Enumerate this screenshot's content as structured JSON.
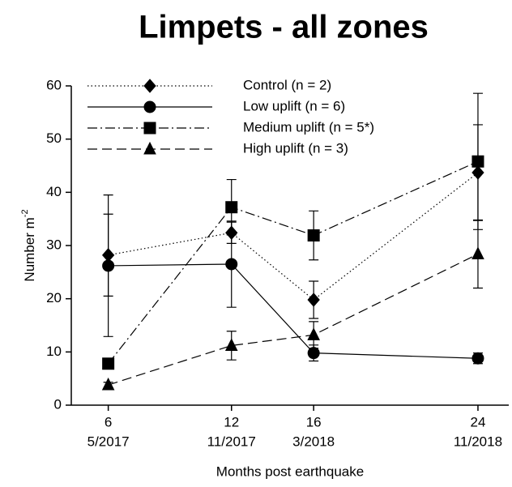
{
  "chart_data": {
    "type": "line",
    "title": "Limpets - all zones",
    "xlabel": "Months post earthquake",
    "ylabel": "Number m",
    "ylabel_superscript": "-2",
    "x": [
      6,
      12,
      16,
      24
    ],
    "xlim": [
      4.2,
      25.5
    ],
    "xticks": [
      {
        "value": 6,
        "label": "6",
        "sublabel": "5/2017"
      },
      {
        "value": 12,
        "label": "12",
        "sublabel": "11/2017"
      },
      {
        "value": 16,
        "label": "16",
        "sublabel": "3/2018"
      },
      {
        "value": 24,
        "label": "24",
        "sublabel": "11/2018"
      }
    ],
    "ylim": [
      0,
      60
    ],
    "yticks": [
      0,
      10,
      20,
      30,
      40,
      50,
      60
    ],
    "legend": "upper left",
    "series": [
      {
        "name": "Control (n = 2)",
        "color": "#000000",
        "dash": "dotted",
        "marker": "diamond",
        "values": [
          28.2,
          32.4,
          19.8,
          43.7
        ],
        "errors": [
          7.7,
          2.0,
          3.5,
          9.0
        ]
      },
      {
        "name": "Low uplift (n = 6)",
        "color": "#000000",
        "dash": "solid",
        "marker": "circle",
        "values": [
          26.2,
          26.5,
          9.8,
          8.8
        ],
        "errors": [
          13.3,
          8.1,
          1.5,
          1.0
        ]
      },
      {
        "name": "Medium uplift (n = 5*)",
        "color": "#000000",
        "dash": "dashdot",
        "marker": "square",
        "values": [
          7.8,
          37.2,
          31.9,
          45.8
        ],
        "errors": [
          0.5,
          5.2,
          4.6,
          12.8
        ]
      },
      {
        "name": "High uplift (n = 3)",
        "color": "#000000",
        "dash": "dashed",
        "marker": "triangle",
        "values": [
          3.8,
          11.2,
          13.2,
          28.4
        ],
        "errors": [
          0.5,
          2.7,
          2.5,
          6.4
        ]
      }
    ]
  }
}
